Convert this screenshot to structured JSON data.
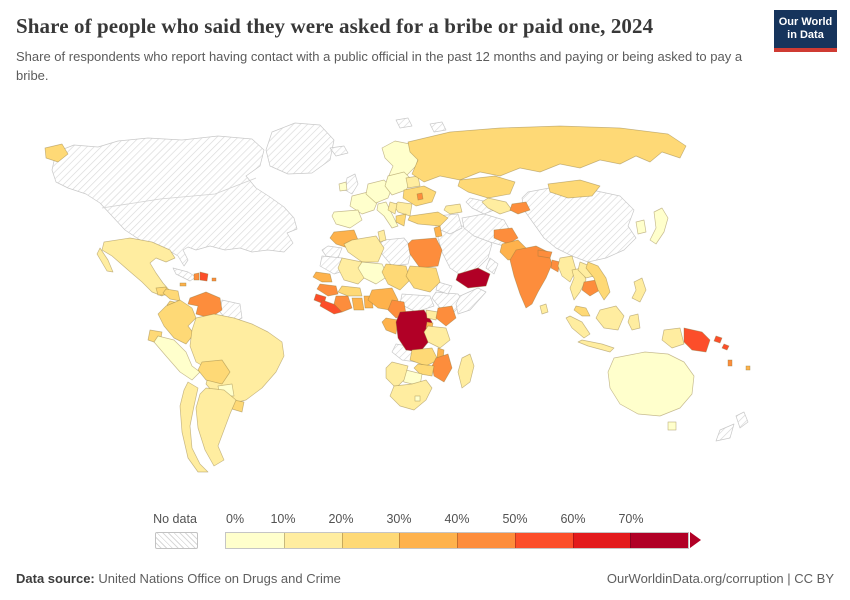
{
  "header": {
    "title": "Share of people who said they were asked for a bribe or paid one, 2024",
    "subtitle": "Share of respondents who report having contact with a public official in the past 12 months and paying or being asked to pay a bribe.",
    "logo_line1": "Our World",
    "logo_line2": "in Data",
    "logo_bg_color": "#16345c",
    "logo_accent_color": "#cf3b33"
  },
  "legend": {
    "no_data_label": "No data",
    "tick_labels": [
      "0%",
      "10%",
      "20%",
      "30%",
      "40%",
      "50%",
      "60%",
      "70%"
    ],
    "palette": [
      "#ffffcc",
      "#ffeda0",
      "#fed976",
      "#feb24c",
      "#fd8d3c",
      "#fc4e2a",
      "#e31a1c",
      "#b10026"
    ]
  },
  "footer": {
    "source_label": "Data source:",
    "source_value": " United Nations Office on Drugs and Crime",
    "right_text": "OurWorldinData.org/corruption | CC BY"
  },
  "chart_data": {
    "type": "heatmap",
    "subtype": "choropleth-world-map",
    "title": "Share of people who said they were asked for a bribe or paid one, 2024",
    "unit": "%",
    "legend_position": "bottom",
    "bins": [
      {
        "range": "0-10%",
        "color": "#ffffcc"
      },
      {
        "range": "10-20%",
        "color": "#ffeda0"
      },
      {
        "range": "20-30%",
        "color": "#fed976"
      },
      {
        "range": "30-40%",
        "color": "#feb24c"
      },
      {
        "range": "40-50%",
        "color": "#fd8d3c"
      },
      {
        "range": "50-60%",
        "color": "#fc4e2a"
      },
      {
        "range": "60-70%",
        "color": "#e31a1c"
      },
      {
        "range": "70%+",
        "color": "#b10026"
      }
    ],
    "country_bins": {
      "Canada and United States": -1,
      "Greenland": -1,
      "Iceland": -1,
      "United Kingdom": -1,
      "Guyana and Suriname": -1,
      "Cuba": -1,
      "China": -1,
      "Saudi Arabia and Gulf states": -1,
      "Iran": -1,
      "Iraq and Syria": -1,
      "Oman": -1,
      "Turkmenistan": -1,
      "Libya": -1,
      "Western Sahara": -1,
      "Mauritania": -1,
      "Ethiopia": -1,
      "Somalia": -1,
      "Eritrea and Djibouti": -1,
      "Central African Republic and South Sudan": -1,
      "Angola": -1,
      "New Zealand": -1,
      "Arctic islands": -1,
      "Mexico": 1,
      "Guatemala": 2,
      "Honduras and Nicaragua": 2,
      "Costa Rica and Panama": 2,
      "Haiti": 4,
      "Dominican Republic": 5,
      "Jamaica": 3,
      "Puerto Rico": 4,
      "Colombia": 2,
      "Venezuela": 4,
      "Ecuador": 2,
      "Peru": 0,
      "Brazil": 1,
      "Bolivia": 2,
      "Paraguay": 0,
      "Uruguay": 2,
      "Argentina": 1,
      "Chile": 1,
      "Ireland": 0,
      "Norway, Sweden and Finland": 0,
      "France": 0,
      "Spain and Portugal": 0,
      "Central Europe": 0,
      "Italy": 0,
      "Poland and Baltic states": 0,
      "Belarus": 1,
      "Ukraine": 2,
      "Moldova": 4,
      "Romania and Bulgaria": 1,
      "Western Balkans": 1,
      "Greece": 2,
      "Turkey": 2,
      "Russia": 2,
      "Kazakhstan": 2,
      "Uzbekistan": 1,
      "Kyrgyzstan and Tajikistan": 4,
      "Caucasus": 1,
      "Mongolia": 2,
      "South Korea": 0,
      "Japan": 0,
      "Afghanistan": 4,
      "Pakistan": 3,
      "India": 4,
      "Nepal": 4,
      "Bangladesh": 4,
      "Sri Lanka": 1,
      "Myanmar": 1,
      "Thailand": 1,
      "Laos": 1,
      "Cambodia": 4,
      "Vietnam": 2,
      "Malaysia": 2,
      "Philippines": 1,
      "Indonesia": 1,
      "Papua New Guinea": 5,
      "Solomon Islands": 5,
      "Vanuatu": 4,
      "Fiji": 3,
      "Australia": 0,
      "Israel and Jordan": 3,
      "Yemen": 7,
      "Morocco": 3,
      "Algeria": 1,
      "Tunisia": 1,
      "Egypt": 4,
      "Mali": 1,
      "Niger": 0,
      "Chad": 2,
      "Sudan": 2,
      "Senegal": 3,
      "Guinea": 4,
      "Sierra Leone": 5,
      "Liberia": 5,
      "Cote d'Ivoire": 4,
      "Ghana": 3,
      "Togo and Benin": 3,
      "Burkina Faso": 2,
      "Nigeria": 3,
      "Cameroon": 4,
      "Gabon and Congo": 3,
      "Democratic Republic of Congo": 7,
      "Uganda": 1,
      "Kenya": 4,
      "Rwanda and Burundi": 3,
      "Tanzania": 1,
      "Zambia": 2,
      "Malawi": 3,
      "Mozambique": 4,
      "Zimbabwe": 2,
      "Botswana": 0,
      "Namibia": 1,
      "South Africa": 1,
      "Lesotho": 0,
      "Madagascar": 1
    }
  }
}
